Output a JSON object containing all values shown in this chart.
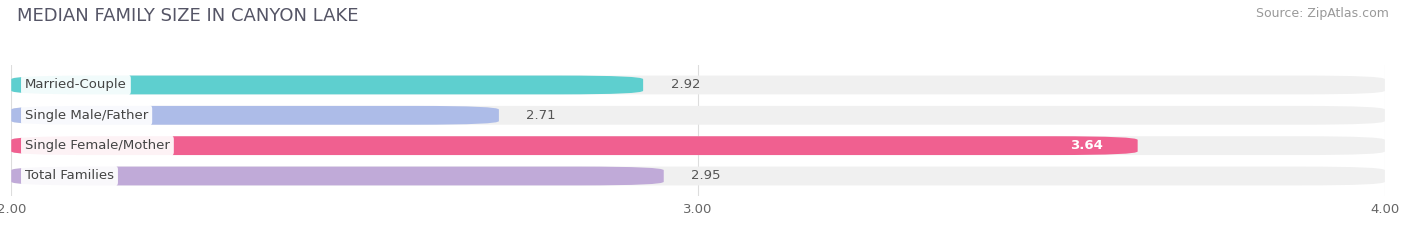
{
  "title": "MEDIAN FAMILY SIZE IN CANYON LAKE",
  "source": "Source: ZipAtlas.com",
  "categories": [
    "Married-Couple",
    "Single Male/Father",
    "Single Female/Mother",
    "Total Families"
  ],
  "values": [
    2.92,
    2.71,
    3.64,
    2.95
  ],
  "bar_colors": [
    "#5ecfcf",
    "#adbce8",
    "#f06090",
    "#c0aad8"
  ],
  "bar_bg_color": "#f0f0f0",
  "xlim": [
    2.0,
    4.0
  ],
  "xticks": [
    2.0,
    3.0,
    4.0
  ],
  "xtick_labels": [
    "2.00",
    "3.00",
    "4.00"
  ],
  "value_colors": [
    "#555555",
    "#555555",
    "#ffffff",
    "#555555"
  ],
  "label_fontsize": 9.5,
  "title_fontsize": 13,
  "source_fontsize": 9,
  "fig_bg_color": "#ffffff",
  "bar_height": 0.62,
  "rounding_size": 0.12
}
